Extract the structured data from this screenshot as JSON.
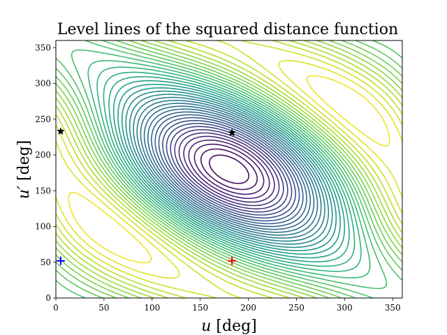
{
  "chart_data": {
    "type": "contour",
    "title": "Level lines of the squared distance function",
    "xlabel_var": "u",
    "xlabel_unit": "[deg]",
    "ylabel_var": "u′",
    "ylabel_unit": "[deg]",
    "xlim": [
      0,
      360
    ],
    "ylim": [
      0,
      360
    ],
    "xticks": [
      0,
      50,
      100,
      150,
      200,
      250,
      300,
      350
    ],
    "yticks": [
      0,
      50,
      100,
      150,
      200,
      250,
      300,
      350
    ],
    "colormap": "viridis",
    "level_count": 40,
    "markers": [
      {
        "name": "minimum",
        "symbol": "plus",
        "x": 183,
        "y": 52,
        "color": "#ff0000"
      },
      {
        "name": "reference",
        "symbol": "plus",
        "x": 5,
        "y": 52,
        "color": "#0000ff"
      },
      {
        "name": "saddle",
        "symbol": "star",
        "x": 183,
        "y": 231,
        "color": "#000000"
      },
      {
        "name": "saddle-left",
        "symbol": "star",
        "x": 5,
        "y": 233,
        "color": "#000000"
      }
    ]
  }
}
